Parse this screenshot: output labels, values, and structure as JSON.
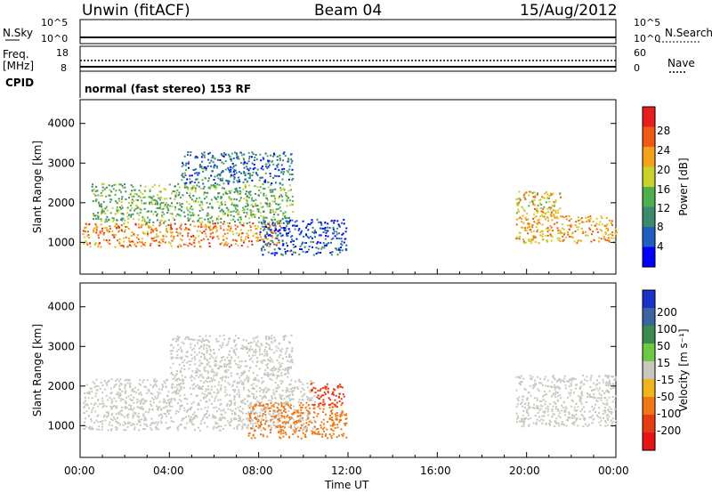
{
  "header": {
    "station": "Unwin (fitACF)",
    "beam": "Beam 04",
    "date": "15/Aug/2012"
  },
  "top_panels": {
    "nsky_label": "N.Sky",
    "nsky_ticks": [
      "10^5",
      "10^0"
    ],
    "nsearch_label": "N.Search",
    "nsearch_ticks": [
      "10^5",
      "10^0"
    ],
    "freq_label": "Freq.",
    "freq_unit": "[MHz]",
    "freq_ticks": [
      "18",
      "8"
    ],
    "nave_label": "Nave",
    "nave_ticks": [
      "60",
      "0"
    ],
    "cpid_label": "CPID",
    "cpid_text": "normal (fast stereo) 153 RF"
  },
  "chart_data": [
    {
      "type": "heatmap",
      "panel": "power",
      "ylabel": "Slant Range [km]",
      "ylim": [
        200,
        4600
      ],
      "yticks": [
        1000,
        2000,
        3000,
        4000
      ],
      "xlim": [
        0,
        24
      ],
      "colorbar": {
        "label": "Power [dB]",
        "ticks": [
          "4",
          "8",
          "12",
          "16",
          "20",
          "24",
          "28"
        ],
        "colors": [
          "#0000ff",
          "#1f5fbf",
          "#3c8a6e",
          "#4db04d",
          "#c8d22a",
          "#f4a21c",
          "#f05a14",
          "#e61e1e"
        ]
      },
      "regions": [
        {
          "x": [
            0.1,
            9.0
          ],
          "y": [
            900,
            1500
          ],
          "level": 24
        },
        {
          "x": [
            0.5,
            9.5
          ],
          "y": [
            1500,
            2500
          ],
          "level": 14
        },
        {
          "x": [
            4.5,
            9.5
          ],
          "y": [
            2500,
            3300
          ],
          "level": 8
        },
        {
          "x": [
            8.0,
            11.9
          ],
          "y": [
            700,
            1600
          ],
          "level": 6
        },
        {
          "x": [
            19.5,
            24.0
          ],
          "y": [
            1000,
            1700
          ],
          "level": 22
        },
        {
          "x": [
            19.5,
            21.5
          ],
          "y": [
            1600,
            2300
          ],
          "level": 20
        }
      ]
    },
    {
      "type": "heatmap",
      "panel": "velocity",
      "ylabel": "Slant Range [km]",
      "ylim": [
        200,
        4600
      ],
      "yticks": [
        1000,
        2000,
        3000,
        4000
      ],
      "xlim": [
        0,
        24
      ],
      "colorbar": {
        "label": "Velocity [m s⁻¹]",
        "ticks": [
          "200",
          "100",
          "50",
          "15",
          "-15",
          "-50",
          "-100",
          "-200"
        ],
        "colors": [
          "#1a32c8",
          "#3c64a0",
          "#3c8a50",
          "#6ec846",
          "#c8c8c0",
          "#f0b41e",
          "#f07814",
          "#e63c14",
          "#e61414"
        ]
      },
      "regions": [
        {
          "x": [
            0.1,
            10.5
          ],
          "y": [
            900,
            2200
          ],
          "level": 0
        },
        {
          "x": [
            4.0,
            9.5
          ],
          "y": [
            2200,
            3300
          ],
          "level": 0
        },
        {
          "x": [
            7.5,
            11.9
          ],
          "y": [
            700,
            1600
          ],
          "level": -80
        },
        {
          "x": [
            10.3,
            11.8
          ],
          "y": [
            1500,
            2100
          ],
          "level": -180
        },
        {
          "x": [
            19.5,
            24.0
          ],
          "y": [
            1000,
            2300
          ],
          "level": 0
        }
      ]
    }
  ],
  "x_axis": {
    "ticks": [
      "00:00",
      "04:00",
      "08:00",
      "12:00",
      "16:00",
      "20:00",
      "00:00"
    ],
    "label": "Time UT"
  }
}
